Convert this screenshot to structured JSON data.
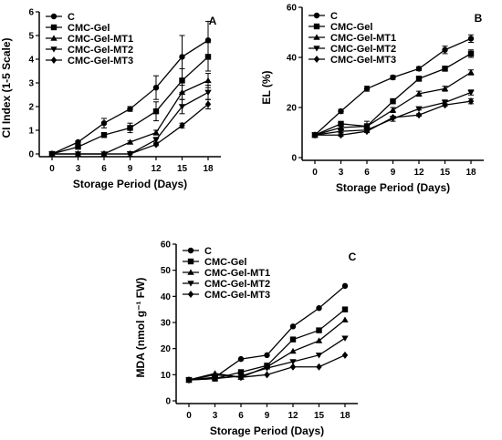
{
  "chart_data": [
    {
      "type": "line",
      "panel_label": "A",
      "xlabel": "Storage Period (Days)",
      "ylabel": "CI Index (1-5 Scale)",
      "x": [
        0,
        3,
        6,
        9,
        12,
        15,
        18
      ],
      "xlim": [
        0,
        18
      ],
      "ylim": [
        0,
        6
      ],
      "yticks": [
        0,
        1,
        2,
        3,
        4,
        5,
        6
      ],
      "legend_position": "top-left",
      "series": [
        {
          "name": "C",
          "marker": "circle",
          "values": [
            0,
            0.5,
            1.3,
            1.9,
            2.8,
            4.1,
            4.8
          ],
          "errors": [
            0,
            0.05,
            0.2,
            0.1,
            0.5,
            0.9,
            0.8
          ]
        },
        {
          "name": "CMC-Gel",
          "marker": "square",
          "values": [
            0,
            0.3,
            0.8,
            1.1,
            1.8,
            3.1,
            4.1
          ],
          "errors": [
            0,
            0.05,
            0.1,
            0.2,
            0.4,
            0.5,
            0.6
          ]
        },
        {
          "name": "CMC-Gel-MT1",
          "marker": "triangle-up",
          "values": [
            0,
            0,
            0,
            0.5,
            0.9,
            2.6,
            3.1
          ],
          "errors": [
            0,
            0,
            0,
            0.05,
            0.1,
            0.3,
            0.3
          ]
        },
        {
          "name": "CMC-Gel-MT2",
          "marker": "triangle-down",
          "values": [
            0,
            0,
            0,
            0,
            0.6,
            2.0,
            2.6
          ],
          "errors": [
            0,
            0,
            0,
            0.1,
            0.1,
            0.3,
            0.3
          ]
        },
        {
          "name": "CMC-Gel-MT3",
          "marker": "diamond",
          "values": [
            0,
            0,
            0,
            0,
            0.4,
            1.2,
            2.1
          ],
          "errors": [
            0,
            0,
            0,
            0,
            0.05,
            0.1,
            0.2
          ]
        }
      ]
    },
    {
      "type": "line",
      "panel_label": "B",
      "xlabel": "Storage Period (Days)",
      "ylabel": "EL (%)",
      "x": [
        0,
        3,
        6,
        9,
        12,
        15,
        18
      ],
      "xlim": [
        0,
        18
      ],
      "ylim": [
        0,
        60
      ],
      "yticks": [
        0,
        20,
        40,
        60
      ],
      "legend_position": "top-left",
      "series": [
        {
          "name": "C",
          "marker": "circle",
          "values": [
            9,
            18.5,
            27.5,
            32,
            35.5,
            43,
            47.5
          ],
          "errors": [
            0.5,
            0.8,
            1,
            0.8,
            0.8,
            1.5,
            1.5
          ]
        },
        {
          "name": "CMC-Gel",
          "marker": "square",
          "values": [
            9,
            13.5,
            12.5,
            22.5,
            31.5,
            35.5,
            41.5
          ],
          "errors": [
            0.5,
            0.8,
            2,
            1,
            1,
            1,
            1.5
          ]
        },
        {
          "name": "CMC-Gel-MT1",
          "marker": "triangle-up",
          "values": [
            9,
            12,
            12.5,
            19,
            25.5,
            27.5,
            34
          ],
          "errors": [
            0.5,
            0.5,
            1,
            1,
            1,
            1,
            1
          ]
        },
        {
          "name": "CMC-Gel-MT2",
          "marker": "triangle-down",
          "values": [
            9,
            10.5,
            11,
            15.5,
            19.5,
            22,
            26
          ],
          "errors": [
            0.5,
            0.5,
            0.5,
            1,
            0.5,
            1,
            1
          ]
        },
        {
          "name": "CMC-Gel-MT3",
          "marker": "diamond",
          "values": [
            9,
            9,
            10.5,
            16,
            17,
            21,
            22.5
          ],
          "errors": [
            0.5,
            0.5,
            0.5,
            0.5,
            0.5,
            0.5,
            1
          ]
        }
      ]
    },
    {
      "type": "line",
      "panel_label": "C",
      "xlabel": "Storage Period (Days)",
      "ylabel": "MDA (nmol g⁻¹ FW)",
      "x": [
        0,
        3,
        6,
        9,
        12,
        15,
        18
      ],
      "xlim": [
        0,
        18
      ],
      "ylim": [
        0,
        60
      ],
      "yticks": [
        0,
        10,
        20,
        30,
        40,
        50,
        60
      ],
      "legend_position": "top-left",
      "series": [
        {
          "name": "C",
          "marker": "circle",
          "values": [
            8,
            9,
            16,
            17.5,
            28.5,
            35.5,
            44
          ]
        },
        {
          "name": "CMC-Gel",
          "marker": "square",
          "values": [
            8,
            8.5,
            11,
            13.5,
            23.5,
            27,
            35
          ]
        },
        {
          "name": "CMC-Gel-MT1",
          "marker": "triangle-up",
          "values": [
            8,
            10.5,
            9,
            13,
            19,
            23,
            31
          ]
        },
        {
          "name": "CMC-Gel-MT2",
          "marker": "triangle-down",
          "values": [
            8,
            8.5,
            9.5,
            12.5,
            15,
            17.5,
            24
          ]
        },
        {
          "name": "CMC-Gel-MT3",
          "marker": "diamond",
          "values": [
            8,
            10,
            9,
            10,
            13,
            13,
            17.5
          ]
        }
      ]
    }
  ]
}
